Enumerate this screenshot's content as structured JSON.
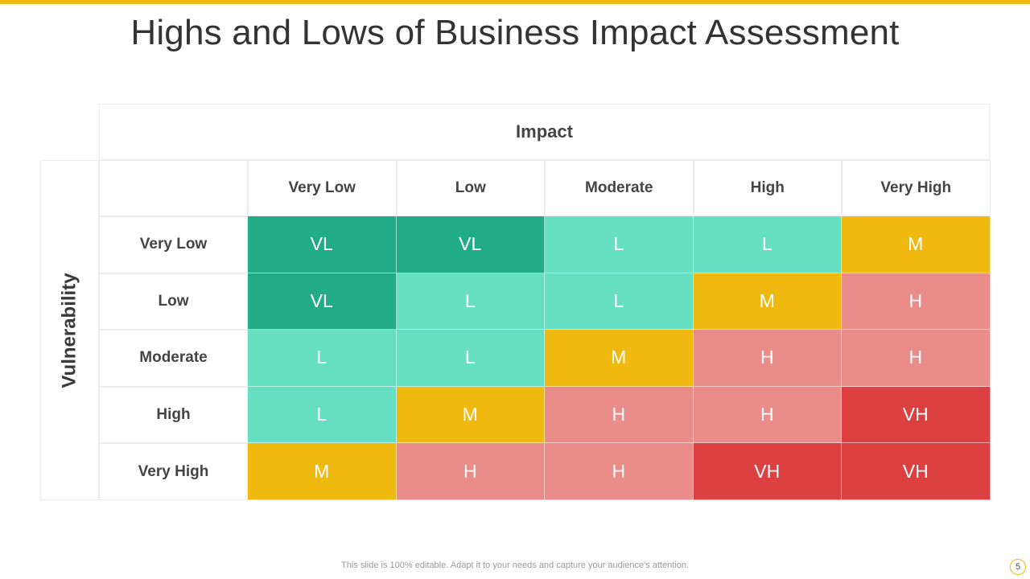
{
  "slide": {
    "title": "Highs and Lows of Business Impact Assessment",
    "accent_color": "#f0b90f",
    "footer_text": "This slide is 100% editable. Adapt it to your needs and capture your audience's attention.",
    "page_number": "5"
  },
  "matrix": {
    "impact_label": "Impact",
    "vulnerability_label": "Vulnerability",
    "impact_levels": [
      "Very Low",
      "Low",
      "Moderate",
      "High",
      "Very High"
    ],
    "vulnerability_levels": [
      "Very Low",
      "Low",
      "Moderate",
      "High",
      "Very High"
    ],
    "cells": [
      [
        "VL",
        "VL",
        "L",
        "L",
        "M"
      ],
      [
        "VL",
        "L",
        "L",
        "M",
        "H"
      ],
      [
        "L",
        "L",
        "M",
        "H",
        "H"
      ],
      [
        "L",
        "M",
        "H",
        "H",
        "VH"
      ],
      [
        "M",
        "H",
        "H",
        "VH",
        "VH"
      ]
    ],
    "level_colors": {
      "VL": "#22ab87",
      "L": "#66dfc2",
      "M": "#f0b90f",
      "H": "#ea8c8a",
      "VH": "#dc4041"
    }
  }
}
